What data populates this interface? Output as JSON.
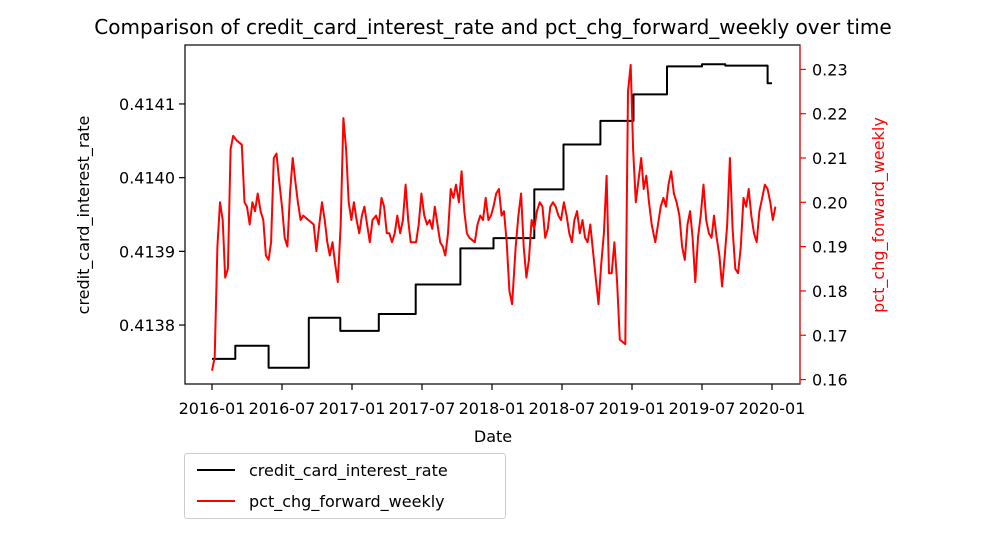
{
  "chart_data": {
    "type": "line",
    "title": "Comparison of credit_card_interest_rate and pct_chg_forward_weekly over time",
    "xlabel": "Date",
    "ylabel_left": "credit_card_interest_rate",
    "ylabel_right": "pct_chg_forward_weekly",
    "x_ticks": [
      "2016-01",
      "2016-07",
      "2017-01",
      "2017-07",
      "2018-01",
      "2018-07",
      "2019-01",
      "2019-07",
      "2020-01"
    ],
    "ylim_left": [
      0.41372,
      0.41418
    ],
    "yticks_left": [
      "0.4138",
      "0.4139",
      "0.4140",
      "0.4141"
    ],
    "ylim_right": [
      0.159,
      0.2355
    ],
    "yticks_right": [
      "0.16",
      "0.17",
      "0.18",
      "0.19",
      "0.20",
      "0.21",
      "0.22",
      "0.23"
    ],
    "grid": false,
    "legend_placement": "below-left",
    "colors": {
      "left_series": "#000000",
      "right_series": "#ff0000",
      "right_axis": "#ff0000"
    },
    "series": [
      {
        "name": "credit_card_interest_rate",
        "axis": "left",
        "color": "#000000",
        "step": true,
        "points": [
          [
            "2016-01-01",
            0.413754
          ],
          [
            "2016-03-01",
            0.413772
          ],
          [
            "2016-05-27",
            0.413742
          ],
          [
            "2016-09-10",
            0.41381
          ],
          [
            "2016-12-01",
            0.413792
          ],
          [
            "2017-03-10",
            0.413815
          ],
          [
            "2017-06-15",
            0.413855
          ],
          [
            "2017-10-10",
            0.413904
          ],
          [
            "2018-01-05",
            0.413918
          ],
          [
            "2018-04-20",
            0.413984
          ],
          [
            "2018-07-05",
            0.414045
          ],
          [
            "2018-10-10",
            0.414077
          ],
          [
            "2019-01-05",
            0.414113
          ],
          [
            "2019-04-01",
            0.414151
          ],
          [
            "2019-07-01",
            0.414154
          ],
          [
            "2019-09-01",
            0.414152
          ],
          [
            "2019-12-20",
            0.414128
          ],
          [
            "2020-01-01",
            0.414128
          ]
        ]
      },
      {
        "name": "pct_chg_forward_weekly",
        "axis": "right",
        "color": "#ff0000",
        "step": false,
        "points": [
          [
            "2016-01-01",
            0.162
          ],
          [
            "2016-01-08",
            0.165
          ],
          [
            "2016-01-15",
            0.19
          ],
          [
            "2016-01-22",
            0.2
          ],
          [
            "2016-01-29",
            0.196
          ],
          [
            "2016-02-05",
            0.183
          ],
          [
            "2016-02-12",
            0.185
          ],
          [
            "2016-02-19",
            0.212
          ],
          [
            "2016-02-26",
            0.215
          ],
          [
            "2016-03-04",
            0.214
          ],
          [
            "2016-03-18",
            0.213
          ],
          [
            "2016-03-25",
            0.2
          ],
          [
            "2016-04-01",
            0.199
          ],
          [
            "2016-04-08",
            0.195
          ],
          [
            "2016-04-15",
            0.2
          ],
          [
            "2016-04-22",
            0.198
          ],
          [
            "2016-04-29",
            0.202
          ],
          [
            "2016-05-06",
            0.198
          ],
          [
            "2016-05-13",
            0.196
          ],
          [
            "2016-05-20",
            0.188
          ],
          [
            "2016-05-27",
            0.187
          ],
          [
            "2016-06-03",
            0.191
          ],
          [
            "2016-06-10",
            0.21
          ],
          [
            "2016-06-17",
            0.211
          ],
          [
            "2016-06-24",
            0.205
          ],
          [
            "2016-07-01",
            0.199
          ],
          [
            "2016-07-08",
            0.192
          ],
          [
            "2016-07-15",
            0.19
          ],
          [
            "2016-07-22",
            0.202
          ],
          [
            "2016-07-29",
            0.21
          ],
          [
            "2016-08-05",
            0.205
          ],
          [
            "2016-08-12",
            0.2
          ],
          [
            "2016-08-19",
            0.196
          ],
          [
            "2016-08-26",
            0.197
          ],
          [
            "2016-09-09",
            0.196
          ],
          [
            "2016-09-23",
            0.195
          ],
          [
            "2016-09-30",
            0.189
          ],
          [
            "2016-10-07",
            0.195
          ],
          [
            "2016-10-14",
            0.2
          ],
          [
            "2016-10-21",
            0.196
          ],
          [
            "2016-10-28",
            0.191
          ],
          [
            "2016-11-04",
            0.188
          ],
          [
            "2016-11-11",
            0.191
          ],
          [
            "2016-11-18",
            0.186
          ],
          [
            "2016-11-25",
            0.182
          ],
          [
            "2016-12-02",
            0.195
          ],
          [
            "2016-12-09",
            0.219
          ],
          [
            "2016-12-16",
            0.212
          ],
          [
            "2016-12-23",
            0.2
          ],
          [
            "2016-12-30",
            0.196
          ],
          [
            "2017-01-06",
            0.2
          ],
          [
            "2017-01-13",
            0.196
          ],
          [
            "2017-01-20",
            0.193
          ],
          [
            "2017-01-27",
            0.197
          ],
          [
            "2017-02-03",
            0.199
          ],
          [
            "2017-02-10",
            0.195
          ],
          [
            "2017-02-17",
            0.191
          ],
          [
            "2017-02-24",
            0.196
          ],
          [
            "2017-03-03",
            0.197
          ],
          [
            "2017-03-10",
            0.195
          ],
          [
            "2017-03-17",
            0.201
          ],
          [
            "2017-03-24",
            0.199
          ],
          [
            "2017-03-31",
            0.193
          ],
          [
            "2017-04-07",
            0.193
          ],
          [
            "2017-04-14",
            0.191
          ],
          [
            "2017-04-21",
            0.193
          ],
          [
            "2017-04-28",
            0.197
          ],
          [
            "2017-05-05",
            0.193
          ],
          [
            "2017-05-12",
            0.196
          ],
          [
            "2017-05-19",
            0.204
          ],
          [
            "2017-05-26",
            0.196
          ],
          [
            "2017-06-02",
            0.191
          ],
          [
            "2017-06-16",
            0.191
          ],
          [
            "2017-06-23",
            0.195
          ],
          [
            "2017-06-30",
            0.202
          ],
          [
            "2017-07-07",
            0.197
          ],
          [
            "2017-07-14",
            0.195
          ],
          [
            "2017-07-21",
            0.196
          ],
          [
            "2017-07-28",
            0.194
          ],
          [
            "2017-08-04",
            0.199
          ],
          [
            "2017-08-11",
            0.195
          ],
          [
            "2017-08-18",
            0.191
          ],
          [
            "2017-08-25",
            0.19
          ],
          [
            "2017-09-01",
            0.188
          ],
          [
            "2017-09-08",
            0.193
          ],
          [
            "2017-09-15",
            0.203
          ],
          [
            "2017-09-22",
            0.201
          ],
          [
            "2017-09-29",
            0.204
          ],
          [
            "2017-10-06",
            0.2
          ],
          [
            "2017-10-13",
            0.207
          ],
          [
            "2017-10-20",
            0.198
          ],
          [
            "2017-10-27",
            0.193
          ],
          [
            "2017-11-03",
            0.192
          ],
          [
            "2017-11-17",
            0.191
          ],
          [
            "2017-11-24",
            0.195
          ],
          [
            "2017-12-01",
            0.197
          ],
          [
            "2017-12-08",
            0.196
          ],
          [
            "2017-12-15",
            0.201
          ],
          [
            "2017-12-22",
            0.196
          ],
          [
            "2017-12-29",
            0.197
          ],
          [
            "2018-01-05",
            0.199
          ],
          [
            "2018-01-12",
            0.202
          ],
          [
            "2018-01-19",
            0.203
          ],
          [
            "2018-01-26",
            0.197
          ],
          [
            "2018-02-02",
            0.198
          ],
          [
            "2018-02-09",
            0.191
          ],
          [
            "2018-02-16",
            0.18
          ],
          [
            "2018-02-23",
            0.177
          ],
          [
            "2018-03-02",
            0.19
          ],
          [
            "2018-03-09",
            0.197
          ],
          [
            "2018-03-16",
            0.202
          ],
          [
            "2018-03-23",
            0.19
          ],
          [
            "2018-03-30",
            0.183
          ],
          [
            "2018-04-06",
            0.187
          ],
          [
            "2018-04-13",
            0.196
          ],
          [
            "2018-04-20",
            0.194
          ],
          [
            "2018-04-27",
            0.198
          ],
          [
            "2018-05-04",
            0.2
          ],
          [
            "2018-05-11",
            0.199
          ],
          [
            "2018-05-18",
            0.192
          ],
          [
            "2018-05-25",
            0.194
          ],
          [
            "2018-06-01",
            0.199
          ],
          [
            "2018-06-08",
            0.2
          ],
          [
            "2018-06-15",
            0.199
          ],
          [
            "2018-06-22",
            0.197
          ],
          [
            "2018-06-29",
            0.196
          ],
          [
            "2018-07-06",
            0.2
          ],
          [
            "2018-07-13",
            0.197
          ],
          [
            "2018-07-20",
            0.193
          ],
          [
            "2018-07-27",
            0.191
          ],
          [
            "2018-08-03",
            0.196
          ],
          [
            "2018-08-10",
            0.198
          ],
          [
            "2018-08-17",
            0.193
          ],
          [
            "2018-08-24",
            0.196
          ],
          [
            "2018-08-31",
            0.192
          ],
          [
            "2018-09-07",
            0.191
          ],
          [
            "2018-09-14",
            0.195
          ],
          [
            "2018-09-21",
            0.189
          ],
          [
            "2018-09-28",
            0.183
          ],
          [
            "2018-10-05",
            0.177
          ],
          [
            "2018-10-12",
            0.186
          ],
          [
            "2018-10-19",
            0.193
          ],
          [
            "2018-10-26",
            0.206
          ],
          [
            "2018-11-02",
            0.184
          ],
          [
            "2018-11-09",
            0.184
          ],
          [
            "2018-11-16",
            0.191
          ],
          [
            "2018-11-23",
            0.182
          ],
          [
            "2018-11-30",
            0.169
          ],
          [
            "2018-12-14",
            0.168
          ],
          [
            "2018-12-21",
            0.225
          ],
          [
            "2018-12-28",
            0.231
          ],
          [
            "2019-01-04",
            0.212
          ],
          [
            "2019-01-11",
            0.2
          ],
          [
            "2019-01-18",
            0.205
          ],
          [
            "2019-01-25",
            0.21
          ],
          [
            "2019-02-01",
            0.203
          ],
          [
            "2019-02-08",
            0.206
          ],
          [
            "2019-02-15",
            0.2
          ],
          [
            "2019-02-22",
            0.195
          ],
          [
            "2019-03-01",
            0.191
          ],
          [
            "2019-03-08",
            0.195
          ],
          [
            "2019-03-15",
            0.199
          ],
          [
            "2019-03-22",
            0.201
          ],
          [
            "2019-03-29",
            0.199
          ],
          [
            "2019-04-05",
            0.204
          ],
          [
            "2019-04-12",
            0.207
          ],
          [
            "2019-04-19",
            0.202
          ],
          [
            "2019-04-26",
            0.2
          ],
          [
            "2019-05-03",
            0.197
          ],
          [
            "2019-05-10",
            0.19
          ],
          [
            "2019-05-17",
            0.187
          ],
          [
            "2019-05-24",
            0.195
          ],
          [
            "2019-05-31",
            0.198
          ],
          [
            "2019-06-07",
            0.192
          ],
          [
            "2019-06-14",
            0.182
          ],
          [
            "2019-06-21",
            0.192
          ],
          [
            "2019-06-28",
            0.197
          ],
          [
            "2019-07-05",
            0.204
          ],
          [
            "2019-07-12",
            0.196
          ],
          [
            "2019-07-19",
            0.193
          ],
          [
            "2019-07-26",
            0.192
          ],
          [
            "2019-08-02",
            0.197
          ],
          [
            "2019-08-09",
            0.192
          ],
          [
            "2019-08-16",
            0.188
          ],
          [
            "2019-08-23",
            0.181
          ],
          [
            "2019-08-30",
            0.188
          ],
          [
            "2019-09-06",
            0.195
          ],
          [
            "2019-09-13",
            0.21
          ],
          [
            "2019-09-20",
            0.194
          ],
          [
            "2019-09-27",
            0.185
          ],
          [
            "2019-10-04",
            0.184
          ],
          [
            "2019-10-11",
            0.19
          ],
          [
            "2019-10-18",
            0.201
          ],
          [
            "2019-10-25",
            0.199
          ],
          [
            "2019-11-01",
            0.203
          ],
          [
            "2019-11-08",
            0.197
          ],
          [
            "2019-11-15",
            0.193
          ],
          [
            "2019-11-22",
            0.191
          ],
          [
            "2019-11-29",
            0.198
          ],
          [
            "2019-12-06",
            0.201
          ],
          [
            "2019-12-13",
            0.204
          ],
          [
            "2019-12-20",
            0.203
          ],
          [
            "2019-12-27",
            0.2
          ],
          [
            "2020-01-03",
            0.196
          ],
          [
            "2020-01-10",
            0.199
          ]
        ]
      }
    ]
  }
}
